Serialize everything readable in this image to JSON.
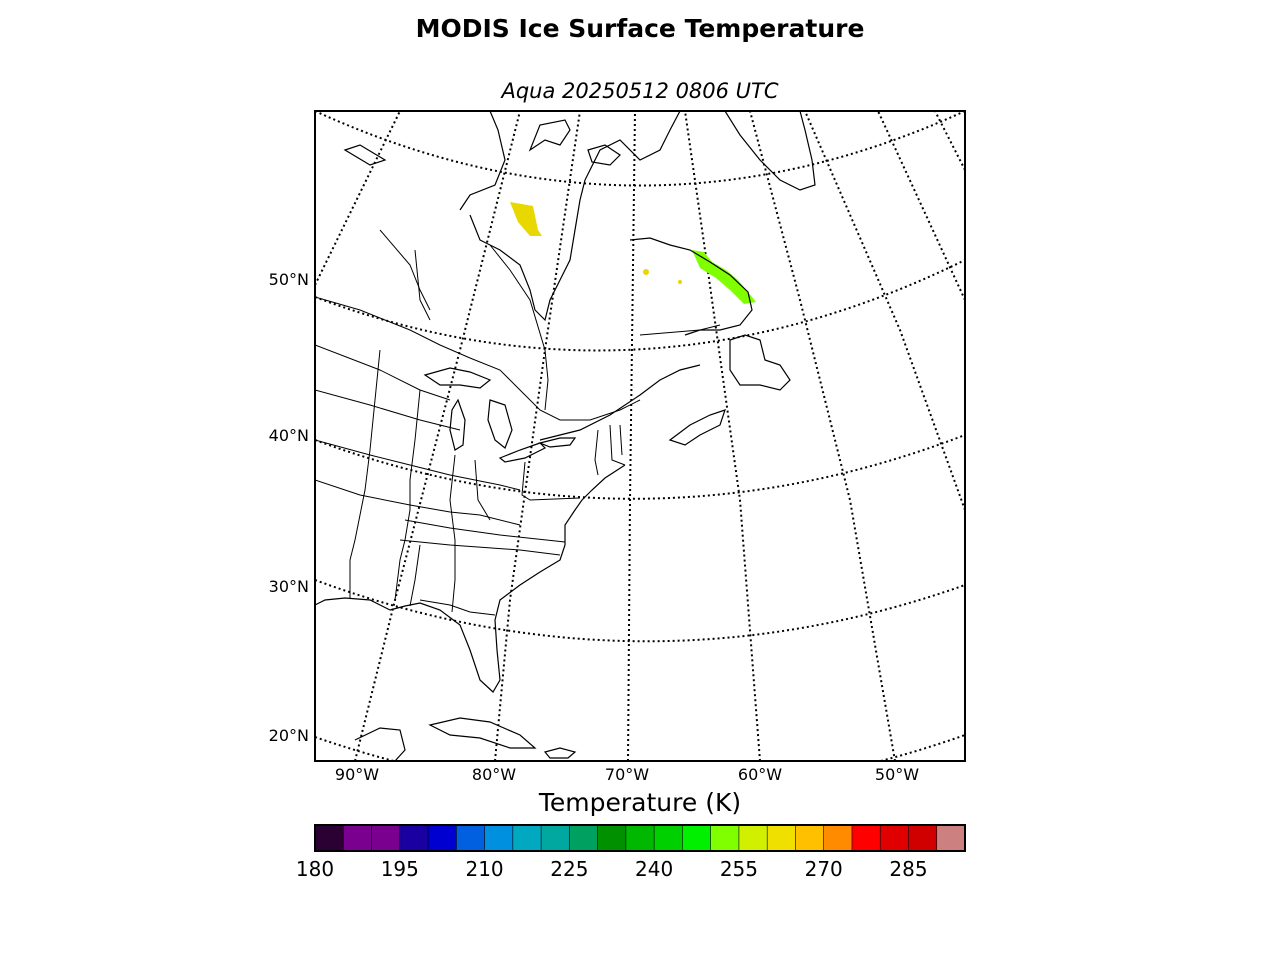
{
  "title": "MODIS Ice Surface Temperature",
  "subtitle": "Aqua 20250512 0806 UTC",
  "lat_labels": [
    "20°N",
    "30°N",
    "40°N",
    "50°N"
  ],
  "lon_labels": [
    "90°W",
    "80°W",
    "70°W",
    "60°W",
    "50°W"
  ],
  "colorbar": {
    "title": "Temperature (K)",
    "min": 180,
    "max": 295,
    "step": 5,
    "tick_labels": [
      "180",
      "195",
      "210",
      "225",
      "240",
      "255",
      "270",
      "285"
    ],
    "colors": [
      "#2b0033",
      "#7a0090",
      "#7a0090",
      "#1a00a0",
      "#0000d0",
      "#0060e0",
      "#0090e0",
      "#00a8c0",
      "#00a8a0",
      "#00a060",
      "#009000",
      "#00b800",
      "#00d000",
      "#00f000",
      "#80ff00",
      "#d0f000",
      "#f0e000",
      "#ffc000",
      "#ff8c00",
      "#ff0000",
      "#e00000",
      "#d00000",
      "#cc8080"
    ]
  },
  "data_regions": [
    {
      "name": "west-of-hudson-bay-patch",
      "color": "#e8d800"
    },
    {
      "name": "labrador-coast-patch",
      "color": "#80ff00"
    }
  ]
}
